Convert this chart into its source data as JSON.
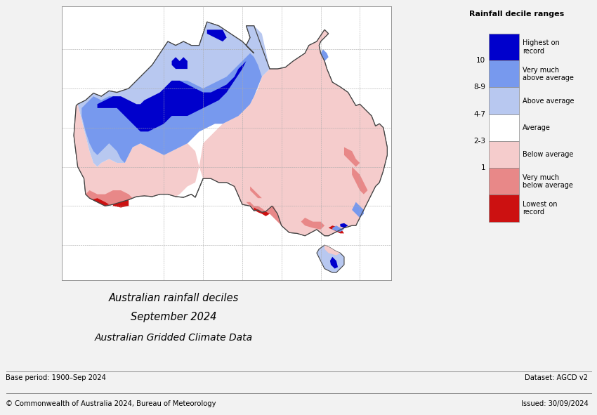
{
  "title_line1": "Australian rainfall deciles",
  "title_line2": "September 2024",
  "title_line3": "Australian Gridded Climate Data",
  "base_period": "Base period: 1900–Sep 2024",
  "dataset": "Dataset: AGCD v2",
  "copyright": "© Commonwealth of Australia 2024, Bureau of Meteorology",
  "issued": "Issued: 30/09/2024",
  "legend_title": "Rainfall decile ranges",
  "legend_labels": [
    "Highest on\nrecord",
    "Very much\nabove average",
    "Above average",
    "Average",
    "Below average",
    "Very much\nbelow average",
    "Lowest on\nrecord"
  ],
  "legend_ticks": [
    "10",
    "8-9",
    "4-7",
    "2-3",
    "1"
  ],
  "legend_colors": [
    "#0000cc",
    "#7799ee",
    "#b8c8f0",
    "#ffffff",
    "#f5cccc",
    "#e88888",
    "#cc1111"
  ],
  "background_color": "#f2f2f2",
  "ocean_color": "#ffffff",
  "border_color": "#555555",
  "figsize": [
    8.5,
    5.91
  ]
}
